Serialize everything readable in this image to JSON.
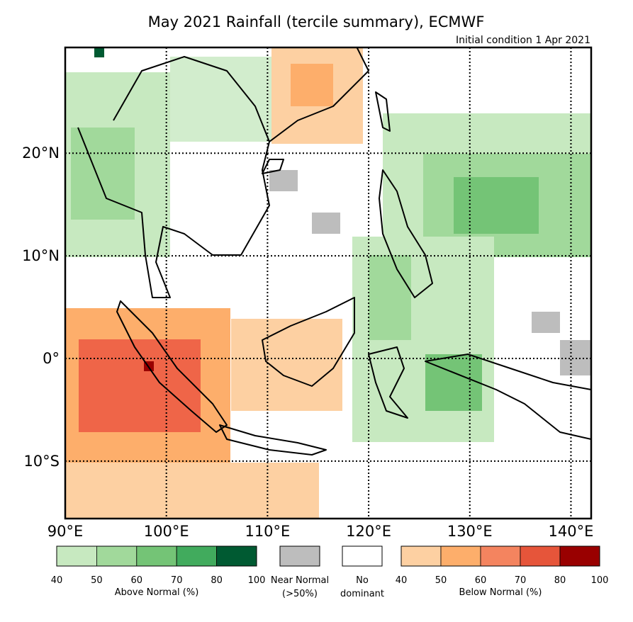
{
  "map": {
    "title": "May 2021 Rainfall (tercile summary), ECMWF",
    "subtitle": "Initial condition 1 Apr 2021",
    "lonlim": [
      90,
      142
    ],
    "latlim": [
      -15.6,
      30.3
    ],
    "xticks": [
      {
        "value": 90,
        "label": "90°E"
      },
      {
        "value": 100,
        "label": "100°E"
      },
      {
        "value": 110,
        "label": "110°E"
      },
      {
        "value": 120,
        "label": "120°E"
      },
      {
        "value": 130,
        "label": "130°E"
      },
      {
        "value": 140,
        "label": "140°E"
      }
    ],
    "yticks": [
      {
        "value": 20,
        "label": "20°N"
      },
      {
        "value": 10,
        "label": "10°N"
      },
      {
        "value": 0,
        "label": "0°"
      },
      {
        "value": -10,
        "label": "10°S"
      }
    ],
    "legend": {
      "above": {
        "label": "Above Normal (%)",
        "ticks": [
          40,
          50,
          60,
          70,
          80,
          100
        ],
        "colors": [
          "#c7e9c0",
          "#a1d99b",
          "#74c476",
          "#41ab5d",
          "#005a32"
        ]
      },
      "near": {
        "label": "Near Normal",
        "sublabel": "(>50%)",
        "color": "#bdbdbd"
      },
      "none": {
        "label": "No",
        "sublabel": "dominant",
        "color": "#ffffff"
      },
      "below": {
        "label": "Below Normal (%)",
        "ticks": [
          40,
          50,
          60,
          70,
          80,
          100
        ],
        "colors": [
          "#fdd0a2",
          "#fdae6b",
          "#f4845f",
          "#e6553a",
          "#990000"
        ]
      }
    }
  }
}
